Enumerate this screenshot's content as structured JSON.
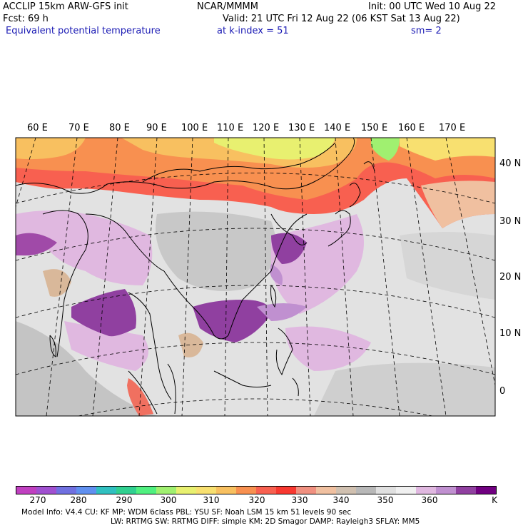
{
  "header": {
    "model": "ACCLIP 15km ARW-GFS init",
    "org": "NCAR/MMMM",
    "init": "Init: 00 UTC Wed 10 Aug 22",
    "fcst": "Fcst:   69 h",
    "valid": "Valid: 21 UTC Fri 12 Aug 22 (06 KST Sat 13 Aug 22)",
    "field": "Equivalent potential temperature",
    "level": "at k-index =  51",
    "smooth": "sm= 2"
  },
  "map": {
    "lon_labels": [
      "60 E",
      "70 E",
      "80 E",
      "90 E",
      "100 E",
      "110 E",
      "120 E",
      "130 E",
      "140 E",
      "150 E",
      "160 E",
      "170 E"
    ],
    "lat_labels": [
      "40 N",
      "30 N",
      "20 N",
      "10 N",
      "0"
    ]
  },
  "colorbar": {
    "colors": [
      "#c040c0",
      "#a050d0",
      "#7070e0",
      "#6090f0",
      "#30c0c0",
      "#30d090",
      "#50f080",
      "#a0f070",
      "#e8f070",
      "#f8e070",
      "#f8c060",
      "#f89050",
      "#f86050",
      "#f83830",
      "#f09080",
      "#f0c0a0",
      "#d0c0b0",
      "#b8b8b8",
      "#e0e0e0",
      "#f0f0f0",
      "#e0b8e0",
      "#c090d0",
      "#9040a0",
      "#700080"
    ],
    "labels": [
      "270",
      "280",
      "290",
      "300",
      "310",
      "320",
      "330",
      "340",
      "350",
      "360"
    ],
    "unit": "K"
  },
  "footer": {
    "line1": "Model Info: V4.4      CU: KF      MP: WDM 6class   PBL: YSU      SF: Noah LSM      15 km     51 levels    90 sec",
    "line2": "LW: RRTMG    SW: RRTMG   DIFF: simple KM: 2D Smagor DAMP: Rayleigh3  SFLAY: MM5"
  }
}
